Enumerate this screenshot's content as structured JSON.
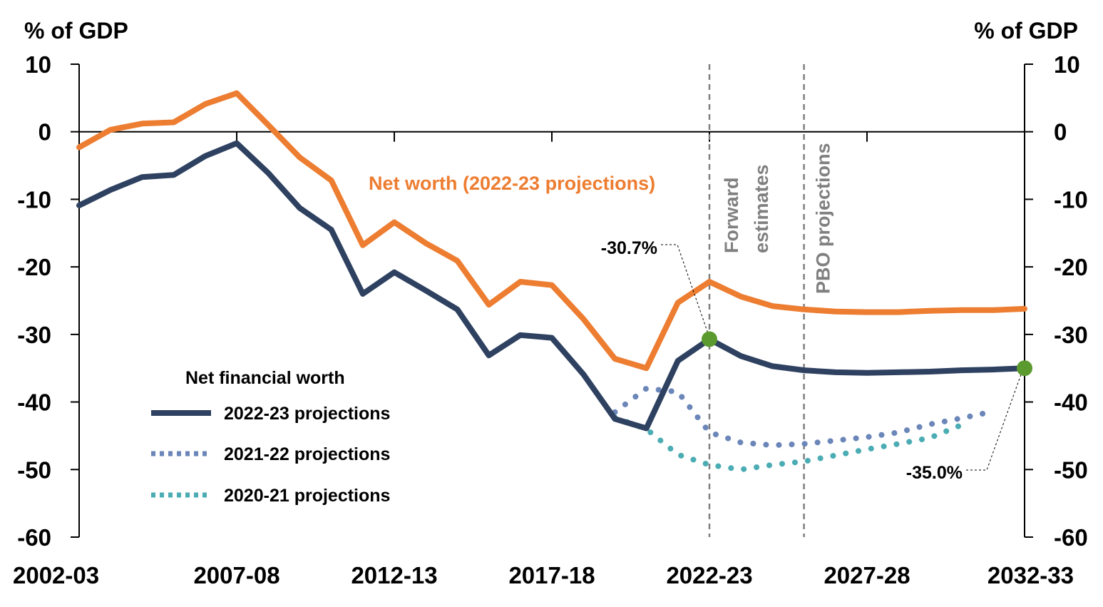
{
  "chart_data": {
    "type": "line",
    "y_axis_label_left": "% of GDP",
    "y_axis_label_right": "% of GDP",
    "ylim": [
      -60,
      10
    ],
    "y_ticks": [
      10,
      0,
      -10,
      -20,
      -30,
      -40,
      -50,
      -60
    ],
    "x_tick_labels": [
      "2002-03",
      "2007-08",
      "2012-13",
      "2017-18",
      "2022-23",
      "2027-28",
      "2032-33"
    ],
    "x_tick_years": [
      2002,
      2007,
      2012,
      2017,
      2022,
      2027,
      2032
    ],
    "xlim": [
      2002,
      2032
    ],
    "series": [
      {
        "id": "net_worth",
        "name": "Net worth (2022-23 projections)",
        "color": "#ED7D31",
        "style": "solid",
        "x": [
          2002,
          2003,
          2004,
          2005,
          2006,
          2007,
          2008,
          2009,
          2010,
          2011,
          2012,
          2013,
          2014,
          2015,
          2016,
          2017,
          2018,
          2019,
          2020,
          2021,
          2022,
          2023,
          2024,
          2025,
          2026,
          2027,
          2028,
          2029,
          2030,
          2031,
          2032
        ],
        "values": [
          -2.3,
          0.3,
          1.2,
          1.4,
          4.1,
          5.7,
          1.0,
          -3.8,
          -7.2,
          -16.8,
          -13.4,
          -16.5,
          -19.1,
          -25.6,
          -22.2,
          -22.7,
          -27.7,
          -33.6,
          -35.0,
          -25.3,
          -22.2,
          -24.4,
          -25.8,
          -26.3,
          -26.6,
          -26.7,
          -26.7,
          -26.5,
          -26.4,
          -26.4,
          -26.2
        ]
      },
      {
        "id": "nfw_2022",
        "name": "2022-23 projections",
        "color": "#2E4160",
        "style": "solid",
        "x": [
          2002,
          2003,
          2004,
          2005,
          2006,
          2007,
          2008,
          2009,
          2010,
          2011,
          2012,
          2013,
          2014,
          2015,
          2016,
          2017,
          2018,
          2019,
          2020,
          2021,
          2022,
          2023,
          2024,
          2025,
          2026,
          2027,
          2028,
          2029,
          2030,
          2031,
          2032
        ],
        "values": [
          -10.9,
          -8.6,
          -6.7,
          -6.4,
          -3.6,
          -1.7,
          -6.1,
          -11.3,
          -14.5,
          -24.0,
          -20.8,
          -23.5,
          -26.3,
          -33.1,
          -30.1,
          -30.5,
          -35.9,
          -42.5,
          -43.9,
          -33.9,
          -30.7,
          -33.2,
          -34.7,
          -35.3,
          -35.6,
          -35.7,
          -35.6,
          -35.5,
          -35.3,
          -35.2,
          -35.0
        ]
      },
      {
        "id": "nfw_2021",
        "name": "2021-22 projections",
        "color": "#6B86B8",
        "style": "dotted",
        "x": [
          2019,
          2020,
          2021,
          2022,
          2023,
          2024,
          2025,
          2026,
          2027,
          2028,
          2029,
          2030,
          2031
        ],
        "values": [
          -41.5,
          -38.0,
          -38.5,
          -44.5,
          -46.0,
          -46.4,
          -46.2,
          -45.7,
          -45.2,
          -44.5,
          -43.3,
          -42.4,
          -41.4
        ]
      },
      {
        "id": "nfw_2020",
        "name": "2020-21 projections",
        "color": "#4BACB3",
        "style": "dotted",
        "x": [
          2019,
          2020,
          2021,
          2022,
          2023,
          2024,
          2025,
          2026,
          2027,
          2028,
          2029,
          2030
        ],
        "values": [
          -42.3,
          -44.0,
          -47.8,
          -49.3,
          -50.0,
          -49.3,
          -48.8,
          -47.9,
          -47.0,
          -46.2,
          -45.3,
          -43.4
        ]
      }
    ],
    "vertical_lines": [
      {
        "x": 2022,
        "label": "Forward estimates",
        "label_lines": [
          "Forward",
          "estimates"
        ],
        "color": "#808080"
      },
      {
        "x": 2025,
        "label": "PBO projections",
        "label_lines": [
          "PBO projections"
        ],
        "color": "#808080"
      }
    ],
    "annotations": [
      {
        "text": "-30.7%",
        "x": 2022,
        "y": -30.7,
        "marker_color": "#5B9A2E"
      },
      {
        "text": "-35.0%",
        "x": 2032,
        "y": -35.0,
        "marker_color": "#5B9A2E"
      }
    ],
    "legend": {
      "title": "Net financial worth",
      "placement": "bottom-left",
      "entries": [
        "nfw_2022",
        "nfw_2021",
        "nfw_2020"
      ]
    }
  }
}
